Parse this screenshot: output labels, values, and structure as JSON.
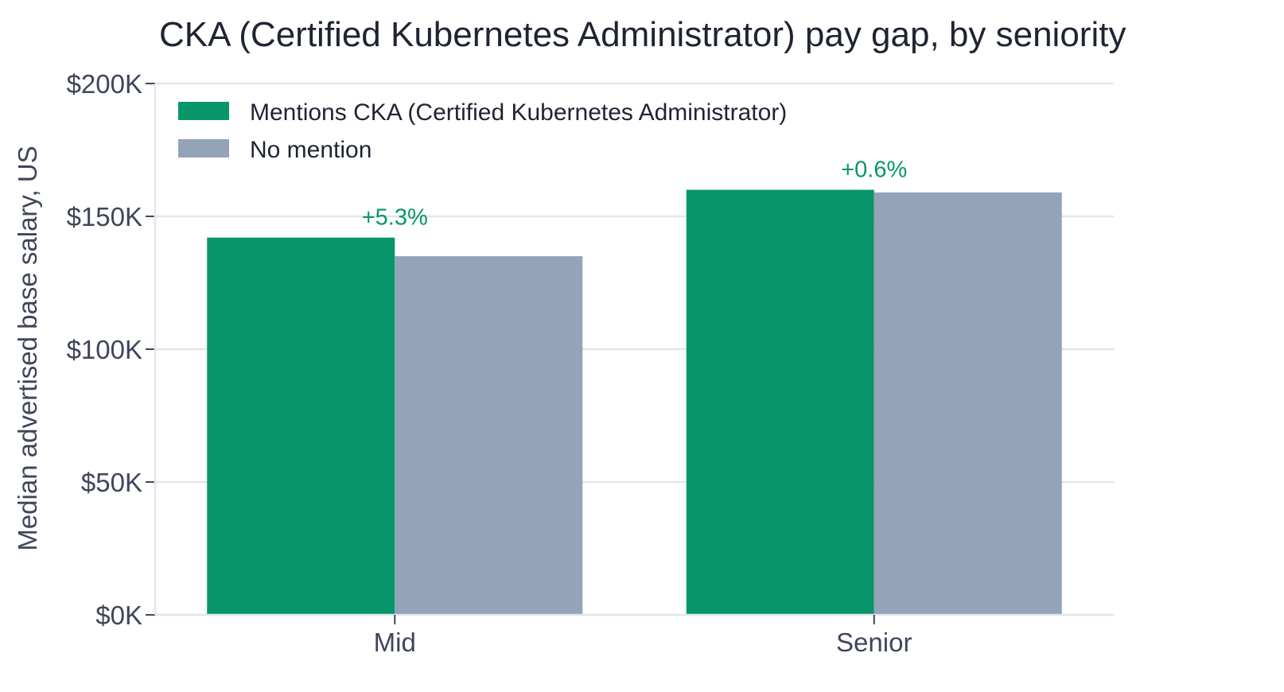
{
  "chart_data": {
    "type": "bar",
    "title": "CKA (Certified Kubernetes Administrator) pay gap, by seniority",
    "xlabel": "",
    "ylabel": "Median advertised base salary, US",
    "categories": [
      "Mid",
      "Senior"
    ],
    "series": [
      {
        "name": "Mentions CKA (Certified Kubernetes Administrator)",
        "values": [
          142000,
          160000
        ],
        "color": "#079669"
      },
      {
        "name": "No mention",
        "values": [
          135000,
          159000
        ],
        "color": "#94a3b8"
      }
    ],
    "annotations": [
      "+5.3%",
      "+0.6%"
    ],
    "annotation_color": "#079669",
    "ylim": [
      0,
      200000
    ],
    "yticks": [
      0,
      50000,
      100000,
      150000,
      200000
    ],
    "ytick_labels": [
      "$0K",
      "$50K",
      "$100K",
      "$150K",
      "$200K"
    ],
    "grid": true,
    "legend_position": "top-left"
  }
}
